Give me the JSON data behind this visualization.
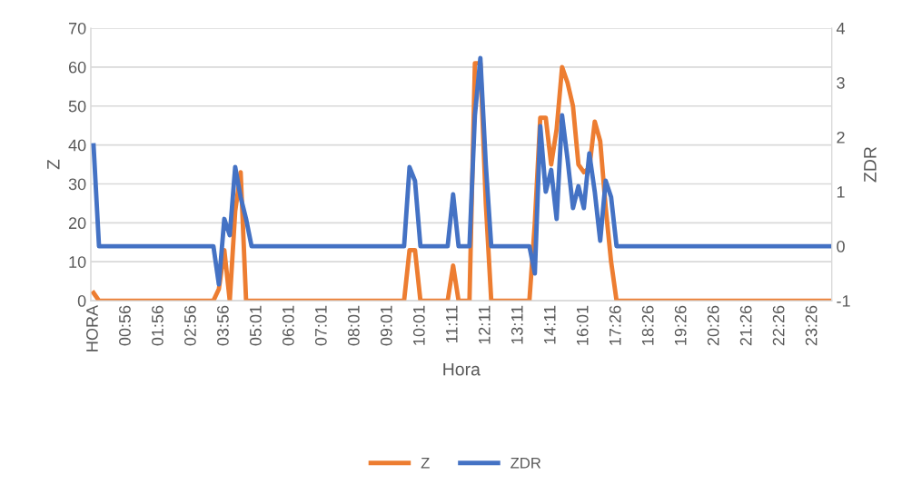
{
  "chart_data": {
    "type": "line",
    "xlabel": "Hora",
    "ylabel": "Z",
    "y2label": "ZDR",
    "categories": [
      "HORA",
      null,
      null,
      null,
      null,
      null,
      "00:56",
      null,
      null,
      null,
      null,
      null,
      "01:56",
      null,
      null,
      null,
      null,
      null,
      "02:56",
      null,
      null,
      null,
      null,
      null,
      "03:56",
      null,
      null,
      null,
      null,
      null,
      "05:01",
      null,
      null,
      null,
      null,
      null,
      "06:01",
      null,
      null,
      null,
      null,
      null,
      "07:01",
      null,
      null,
      null,
      null,
      null,
      "08:01",
      null,
      null,
      null,
      null,
      null,
      "09:01",
      null,
      null,
      null,
      null,
      null,
      "10:01",
      null,
      null,
      null,
      null,
      null,
      "11:11",
      null,
      null,
      null,
      null,
      null,
      "12:11",
      null,
      null,
      null,
      null,
      null,
      "13:11",
      null,
      null,
      null,
      null,
      null,
      "14:11",
      null,
      null,
      null,
      null,
      null,
      "16:01",
      null,
      null,
      null,
      null,
      null,
      "17:26",
      null,
      null,
      null,
      null,
      null,
      "18:26",
      null,
      null,
      null,
      null,
      null,
      "19:26",
      null,
      null,
      null,
      null,
      null,
      "20:26",
      null,
      null,
      null,
      null,
      null,
      "21:26",
      null,
      null,
      null,
      null,
      null,
      "22:26",
      null,
      null,
      null,
      null,
      null,
      "23:26",
      null,
      null,
      null
    ],
    "series": [
      {
        "name": "Z",
        "color": "#ed7d31",
        "values": [
          2,
          0,
          0,
          0,
          0,
          0,
          0,
          0,
          0,
          0,
          0,
          0,
          0,
          0,
          0,
          0,
          0,
          0,
          0,
          0,
          0,
          0,
          0,
          3,
          13,
          0,
          23,
          33,
          0,
          0,
          0,
          0,
          0,
          0,
          0,
          0,
          0,
          0,
          0,
          0,
          0,
          0,
          0,
          0,
          0,
          0,
          0,
          0,
          0,
          0,
          0,
          0,
          0,
          0,
          0,
          0,
          0,
          0,
          13,
          13,
          0,
          0,
          0,
          0,
          0,
          0,
          9,
          0,
          0,
          0,
          61,
          61,
          25,
          0,
          0,
          0,
          0,
          0,
          0,
          0,
          0,
          20,
          47,
          47,
          35,
          44,
          60,
          56,
          50,
          35,
          33,
          34,
          46,
          41,
          24,
          10,
          0,
          0,
          0,
          0,
          0,
          0,
          0,
          0,
          0,
          0,
          0,
          0,
          0,
          0,
          0,
          0,
          0,
          0,
          0,
          0,
          0,
          0,
          0,
          0,
          0,
          0,
          0,
          0,
          0,
          0,
          0,
          0,
          0,
          0,
          0,
          0,
          0,
          0,
          0,
          0
        ]
      },
      {
        "name": "ZDR",
        "color": "#4472c4",
        "axis": "y2",
        "values": [
          1.85,
          0,
          0,
          0,
          0,
          0,
          0,
          0,
          0,
          0,
          0,
          0,
          0,
          0,
          0,
          0,
          0,
          0,
          0,
          0,
          0,
          0,
          0,
          -0.7,
          0.5,
          0.2,
          1.45,
          0.9,
          0.5,
          0,
          0,
          0,
          0,
          0,
          0,
          0,
          0,
          0,
          0,
          0,
          0,
          0,
          0,
          0,
          0,
          0,
          0,
          0,
          0,
          0,
          0,
          0,
          0,
          0,
          0,
          0,
          0,
          0,
          1.45,
          1.2,
          0,
          0,
          0,
          0,
          0,
          0,
          0.95,
          0,
          0,
          0,
          2.4,
          3.45,
          1.5,
          0,
          0,
          0,
          0,
          0,
          0,
          0,
          0,
          -0.5,
          2.2,
          1.0,
          1.4,
          0.5,
          2.4,
          1.6,
          0.7,
          1.1,
          0.7,
          1.7,
          1.0,
          0.1,
          1.2,
          0.9,
          0,
          0,
          0,
          0,
          0,
          0,
          0,
          0,
          0,
          0,
          0,
          0,
          0,
          0,
          0,
          0,
          0,
          0,
          0,
          0,
          0,
          0,
          0,
          0,
          0,
          0,
          0,
          0,
          0,
          0,
          0,
          0,
          0,
          0,
          0,
          0,
          0,
          0,
          0,
          0
        ]
      }
    ],
    "ylim": [
      0,
      70
    ],
    "yticks": [
      0,
      10,
      20,
      30,
      40,
      50,
      60,
      70
    ],
    "y2lim": [
      -1,
      4
    ],
    "y2ticks": [
      -1,
      0,
      1,
      2,
      3,
      4
    ],
    "grid": "y",
    "legend": "bottom",
    "marker": "none",
    "line_style": "solid"
  }
}
